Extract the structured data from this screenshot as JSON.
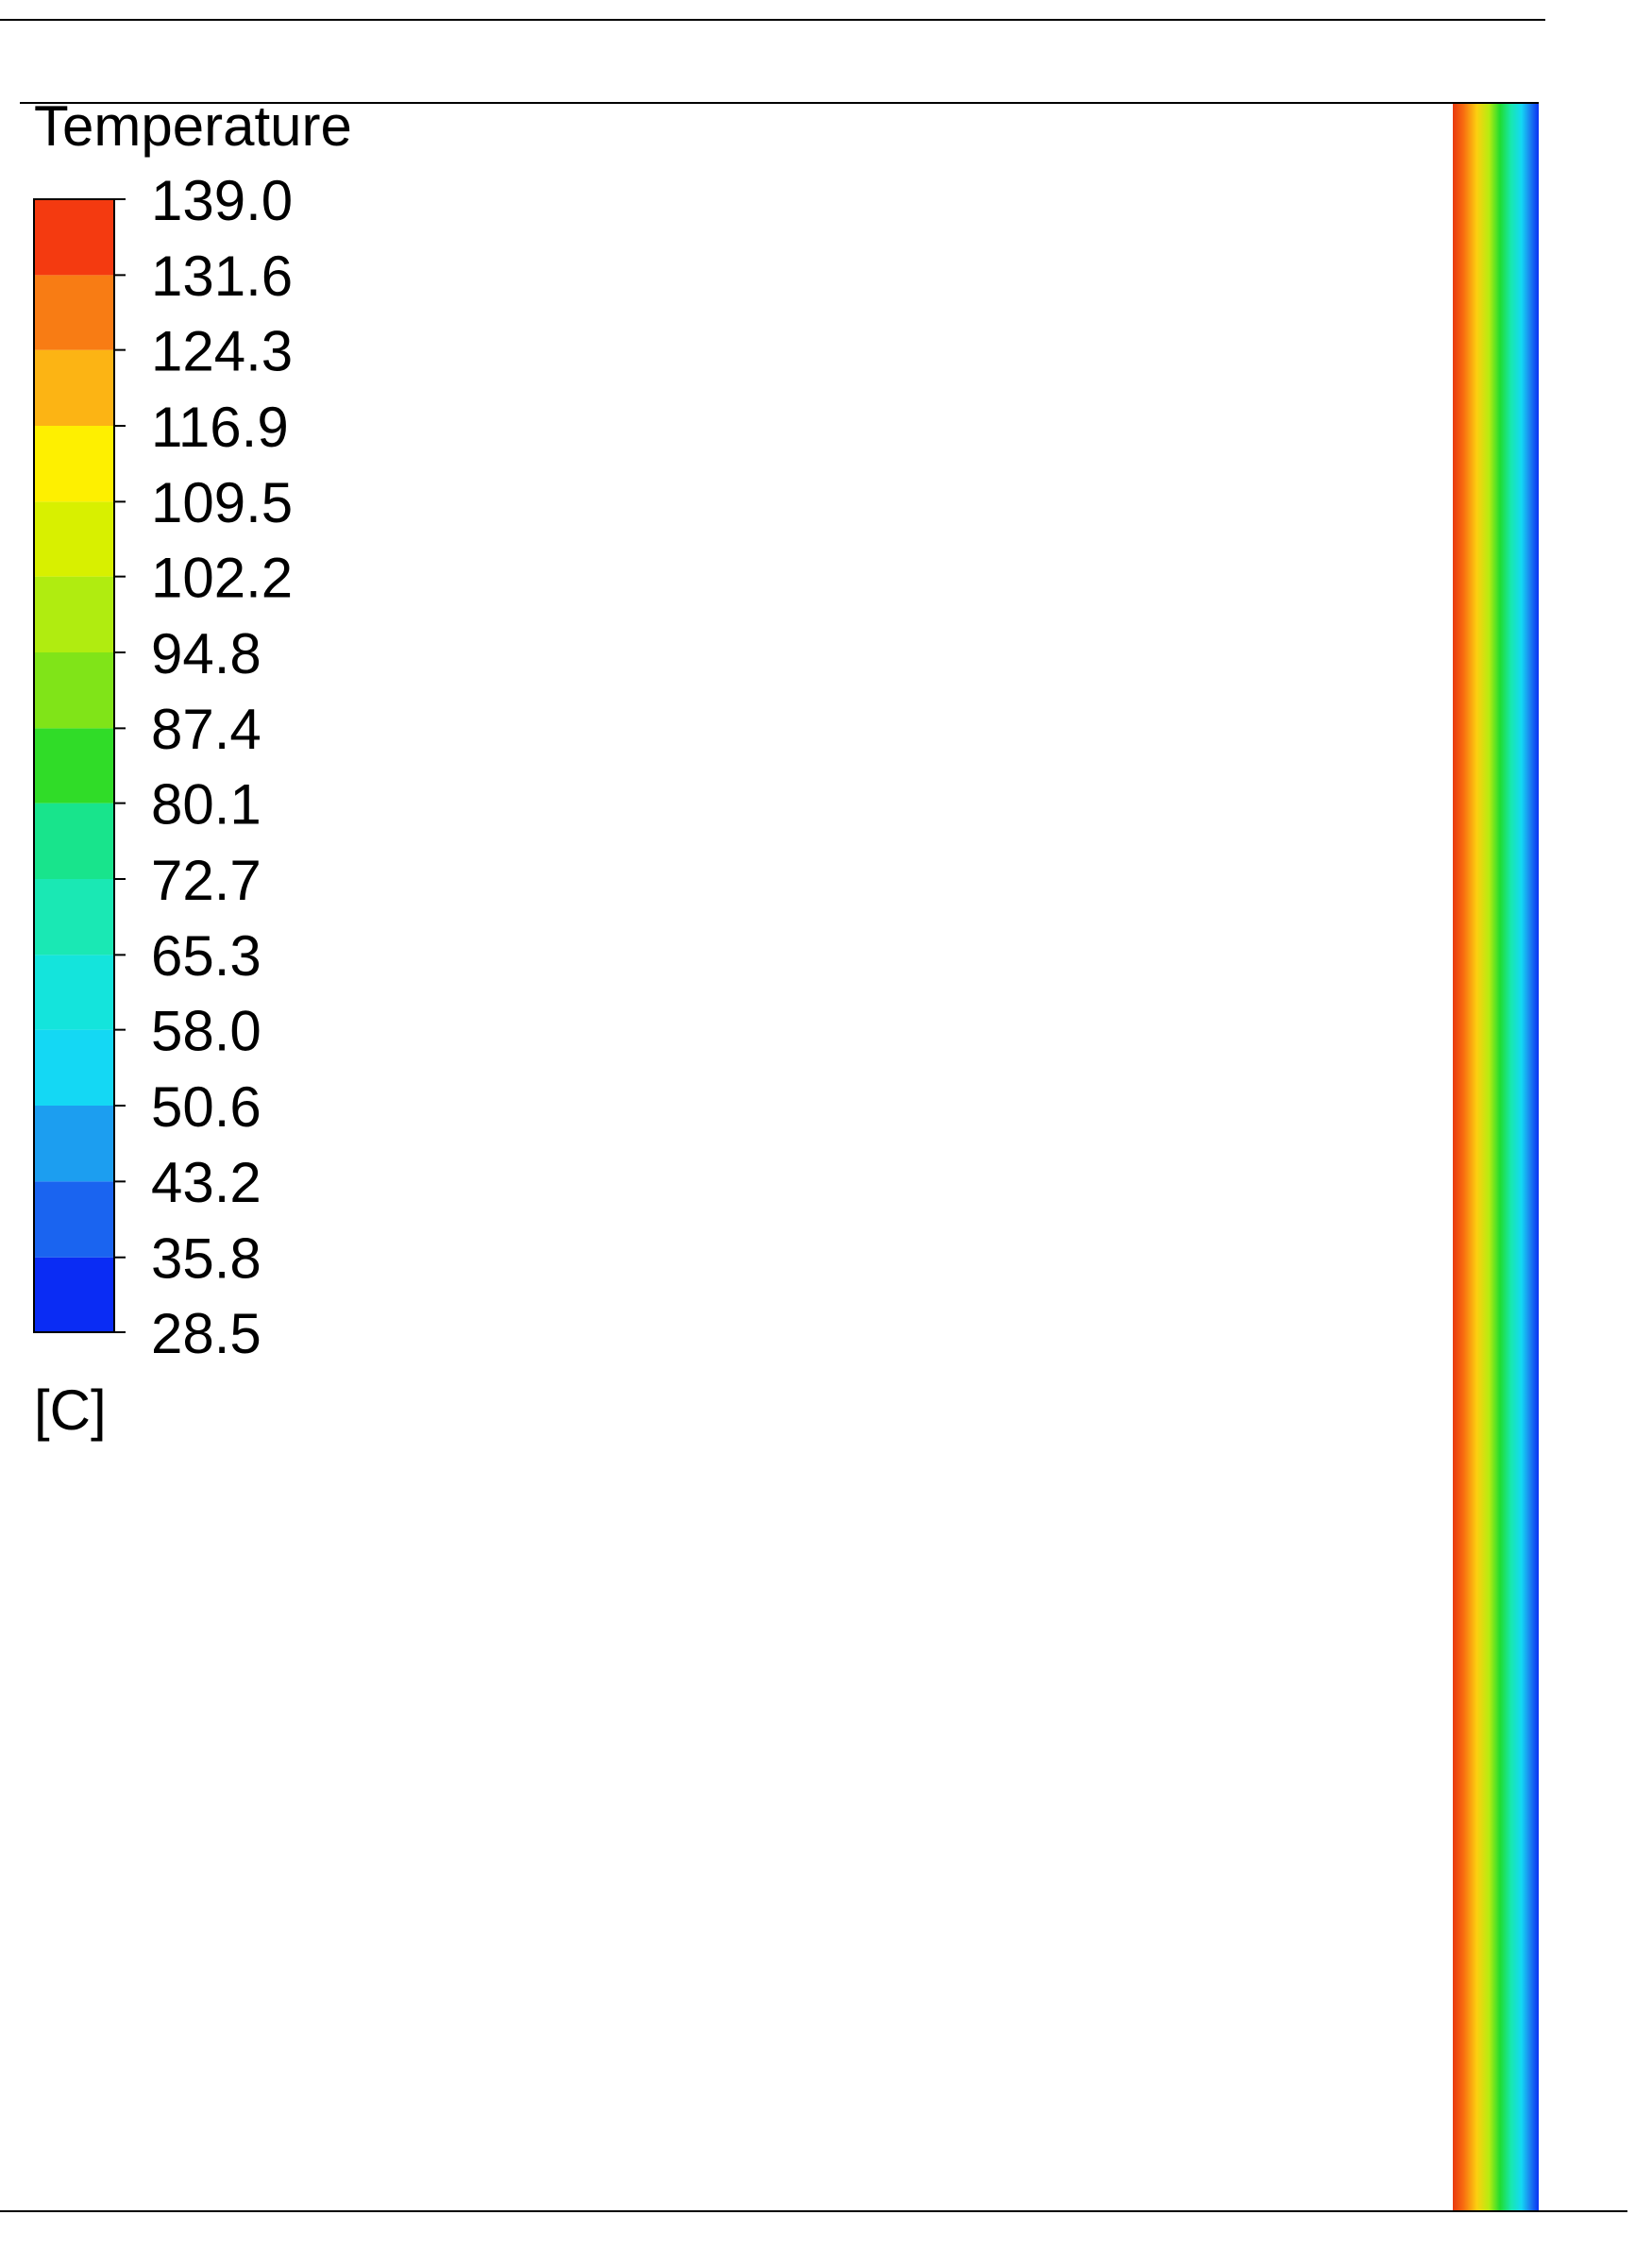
{
  "chart_data": {
    "type": "contour",
    "title": "Temperature",
    "unit": "[C]",
    "ylim": [
      28.5,
      139.0
    ],
    "yticks": [
      {
        "value": 28.5,
        "label": "28.5"
      },
      {
        "value": 35.8,
        "label": "35.8"
      },
      {
        "value": 43.2,
        "label": "43.2"
      },
      {
        "value": 50.6,
        "label": "50.6"
      },
      {
        "value": 58.0,
        "label": "58.0"
      },
      {
        "value": 65.3,
        "label": "65.3"
      },
      {
        "value": 72.7,
        "label": "72.7"
      },
      {
        "value": 80.1,
        "label": "80.1"
      },
      {
        "value": 87.4,
        "label": "87.4"
      },
      {
        "value": 94.8,
        "label": "94.8"
      },
      {
        "value": 102.2,
        "label": "102.2"
      },
      {
        "value": 109.5,
        "label": "109.5"
      },
      {
        "value": 116.9,
        "label": "116.9"
      },
      {
        "value": 124.3,
        "label": "124.3"
      },
      {
        "value": 131.6,
        "label": "131.6"
      },
      {
        "value": 139.0,
        "label": "139.0"
      }
    ],
    "colors": [
      "#0a2cf4",
      "#1a64f0",
      "#1c9ef0",
      "#14d8f4",
      "#14e4dc",
      "#1ae8b4",
      "#18e48c",
      "#30dc28",
      "#80e418",
      "#b0ec10",
      "#d8f000",
      "#fef000",
      "#fcb414",
      "#f87c14",
      "#f43a10"
    ]
  }
}
